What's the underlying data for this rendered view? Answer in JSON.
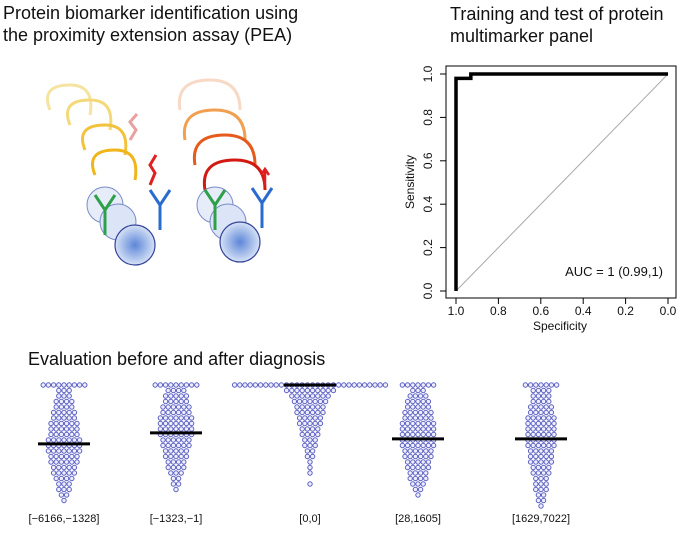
{
  "illustration": {
    "title": "Protein biomarker identification using the proximity extension assay (PEA)"
  },
  "chart_data": [
    {
      "type": "roc",
      "title": "Training and test of protein multimarker panel",
      "x_label": "Specificity",
      "y_label": "Sensitivity",
      "annotation": "AUC = 1 (0.99,1)",
      "x": [
        1,
        1,
        0.93,
        0.93,
        0
      ],
      "values": [
        0,
        0.98,
        0.98,
        1,
        1
      ],
      "color": "#000000",
      "xlim": [
        1,
        0
      ],
      "ylim": [
        0,
        1
      ],
      "xticks": [
        {
          "value": 1,
          "label": "1.0"
        },
        {
          "value": 0.8,
          "label": "0.8"
        },
        {
          "value": 0.6,
          "label": "0.6"
        },
        {
          "value": 0.4,
          "label": "0.4"
        },
        {
          "value": 0.2,
          "label": "0.2"
        },
        {
          "value": 0,
          "label": "0.0"
        }
      ],
      "yticks": [
        {
          "value": 0,
          "label": "0.0"
        },
        {
          "value": 0.2,
          "label": "0.2"
        },
        {
          "value": 0.4,
          "label": "0.4"
        },
        {
          "value": 0.6,
          "label": "0.6"
        },
        {
          "value": 0.8,
          "label": "0.8"
        },
        {
          "value": 1,
          "label": "1.0"
        }
      ]
    },
    {
      "type": "beeswarm",
      "title": "Evaluation before and after diagnosis",
      "color": "#5a5fc0",
      "categories": [
        "[−6166,−1328]",
        "[−1323,−1]",
        "[0,0]",
        "[28,1605]",
        "[1629,7022]"
      ],
      "row_counts": [
        [
          9,
          3,
          3,
          4,
          4,
          5,
          5,
          6,
          6,
          6,
          7,
          7,
          7,
          6,
          6,
          5,
          5,
          4,
          3,
          3,
          2,
          1
        ],
        [
          9,
          4,
          5,
          5,
          6,
          6,
          7,
          7,
          7,
          7,
          6,
          6,
          5,
          5,
          4,
          4,
          3,
          2,
          2,
          1
        ],
        [
          30,
          10,
          8,
          7,
          6,
          6,
          5,
          5,
          4,
          4,
          3,
          3,
          2,
          2,
          1,
          1,
          1,
          0,
          1
        ],
        [
          7,
          3,
          4,
          5,
          5,
          6,
          6,
          7,
          7,
          7,
          7,
          7,
          6,
          6,
          5,
          5,
          4,
          4,
          3,
          2,
          1
        ],
        [
          7,
          4,
          4,
          4,
          5,
          5,
          6,
          6,
          6,
          6,
          6,
          6,
          5,
          5,
          5,
          4,
          4,
          3,
          3,
          3,
          2,
          2,
          1
        ]
      ],
      "median_row": [
        10.7,
        8.7,
        0,
        9.8,
        9.8
      ]
    }
  ]
}
